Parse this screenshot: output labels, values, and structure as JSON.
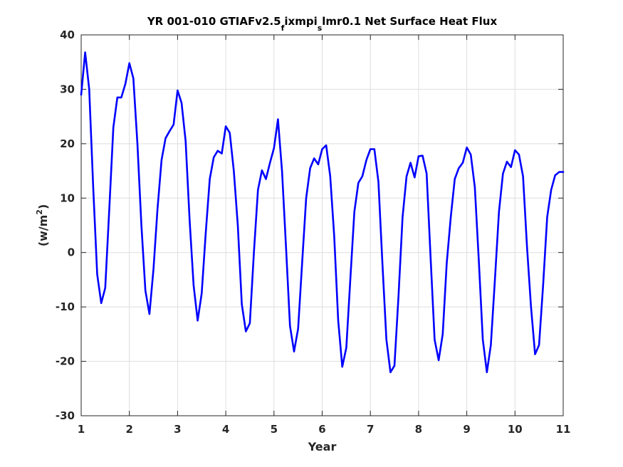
{
  "chart_data": {
    "type": "line",
    "title_parts": [
      "YR 001-010 GTIAFv2.5",
      "f",
      "ixmpi",
      "s",
      "lmr0.1 Net Surface Heat Flux"
    ],
    "xlabel": "Year",
    "ylabel_parts": [
      "(w/m",
      "2",
      ")"
    ],
    "xlim": [
      1,
      11
    ],
    "ylim": [
      -30,
      40
    ],
    "x_ticks": [
      1,
      2,
      3,
      4,
      5,
      6,
      7,
      8,
      9,
      10,
      11
    ],
    "x_tick_labels": [
      "1",
      "2",
      "3",
      "4",
      "5",
      "6",
      "7",
      "8",
      "9",
      "10",
      "11"
    ],
    "y_ticks": [
      40,
      30,
      20,
      10,
      0,
      -10,
      -20,
      -30
    ],
    "y_tick_labels": [
      "40",
      "30",
      "20",
      "10",
      "0",
      "-10",
      "-20",
      "-30"
    ],
    "grid": true,
    "line_color": "#0000ff",
    "series": [
      {
        "x": [
          1.0,
          1.083,
          1.167,
          1.25,
          1.333,
          1.417,
          1.5,
          1.583,
          1.667,
          1.75,
          1.833,
          1.917,
          2.0,
          2.083,
          2.167,
          2.25,
          2.333,
          2.417,
          2.5,
          2.583,
          2.667,
          2.75,
          2.833,
          2.917,
          3.0,
          3.083,
          3.167,
          3.25,
          3.333,
          3.417,
          3.5,
          3.583,
          3.667,
          3.75,
          3.833,
          3.917,
          4.0,
          4.083,
          4.167,
          4.25,
          4.333,
          4.417,
          4.5,
          4.583,
          4.667,
          4.75,
          4.833,
          4.917,
          5.0,
          5.083,
          5.167,
          5.25,
          5.333,
          5.417,
          5.5,
          5.583,
          5.667,
          5.75,
          5.833,
          5.917,
          6.0,
          6.083,
          6.167,
          6.25,
          6.333,
          6.417,
          6.5,
          6.583,
          6.667,
          6.75,
          6.833,
          6.917,
          7.0,
          7.083,
          7.167,
          7.25,
          7.333,
          7.417,
          7.5,
          7.583,
          7.667,
          7.75,
          7.833,
          7.917,
          8.0,
          8.083,
          8.167,
          8.25,
          8.333,
          8.417,
          8.5,
          8.583,
          8.667,
          8.75,
          8.833,
          8.917,
          9.0,
          9.083,
          9.167,
          9.25,
          9.333,
          9.417,
          9.5,
          9.583,
          9.667,
          9.75,
          9.833,
          9.917,
          10.0,
          10.083,
          10.167,
          10.25,
          10.333,
          10.417,
          10.5,
          10.583,
          10.667,
          10.75,
          10.833,
          10.917,
          11.0
        ],
        "values": [
          29,
          36.8,
          30,
          12,
          -4,
          -9.3,
          -6.5,
          8,
          23,
          28.5,
          28.5,
          31,
          34.8,
          32,
          20,
          5,
          -7,
          -11.3,
          -3,
          8,
          17,
          21,
          22.3,
          23.5,
          29.8,
          27.5,
          20.5,
          6,
          -6,
          -12.5,
          -7.5,
          3.5,
          13.5,
          17.5,
          18.7,
          18.2,
          23.2,
          22,
          15,
          5,
          -9.5,
          -14.5,
          -13,
          0,
          11.5,
          15.1,
          13.5,
          16.5,
          19.2,
          24.5,
          15,
          1,
          -13.5,
          -18.2,
          -14,
          -2,
          10,
          15.5,
          17.3,
          16.2,
          19,
          19.7,
          14,
          3,
          -12.5,
          -21,
          -17.5,
          -5,
          7.5,
          12.8,
          14,
          17,
          19,
          19,
          13,
          -2,
          -16,
          -22,
          -20.8,
          -8,
          6.5,
          14,
          16.5,
          13.8,
          17.7,
          17.8,
          14.5,
          -1,
          -16,
          -19.8,
          -15,
          -2,
          6.5,
          13.5,
          15.5,
          16.5,
          19.3,
          18,
          12,
          -1.5,
          -16,
          -22,
          -17,
          -5,
          7.5,
          14.5,
          16.7,
          15.7,
          18.8,
          18,
          14,
          1,
          -10,
          -18.7,
          -17,
          -6,
          6.5,
          11.5,
          14.2,
          14.8,
          14.8
        ]
      }
    ]
  }
}
